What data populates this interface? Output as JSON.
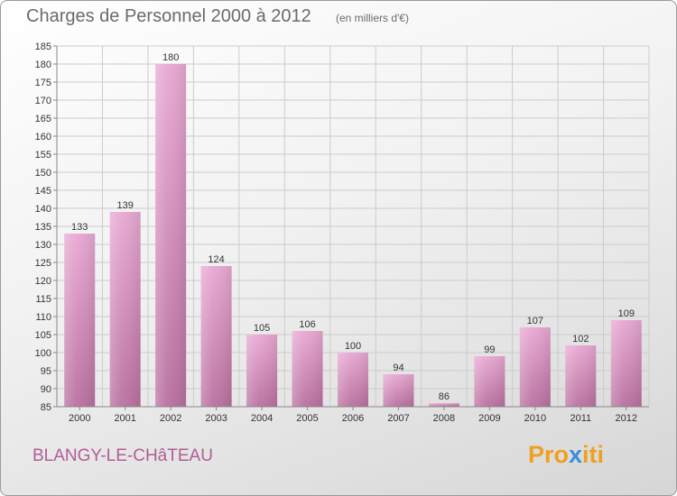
{
  "header": {
    "title": "Charges de Personnel 2000 à 2012",
    "subtitle": "(en milliers d'€)"
  },
  "footer": {
    "place": "BLANGY-LE-CHâTEAU",
    "logo_part1": "Pro",
    "logo_part2": "x",
    "logo_part3": "iti"
  },
  "chart_data": {
    "type": "bar",
    "title": "Charges de Personnel 2000 à 2012",
    "subtitle": "(en milliers d'€)",
    "categories": [
      "2000",
      "2001",
      "2002",
      "2003",
      "2004",
      "2005",
      "2006",
      "2007",
      "2008",
      "2009",
      "2010",
      "2011",
      "2012"
    ],
    "values": [
      133,
      139,
      180,
      124,
      105,
      106,
      100,
      94,
      86,
      99,
      107,
      102,
      109
    ],
    "ylim": [
      85,
      185
    ],
    "yticks": [
      85,
      90,
      95,
      100,
      105,
      110,
      115,
      120,
      125,
      130,
      135,
      140,
      145,
      150,
      155,
      160,
      165,
      170,
      175,
      180,
      185
    ],
    "grid": true,
    "colors": {
      "bar_light": "#e8a8d2",
      "bar_dark": "#b9709f",
      "grid": "#cccccc",
      "axis": "#888888"
    }
  }
}
